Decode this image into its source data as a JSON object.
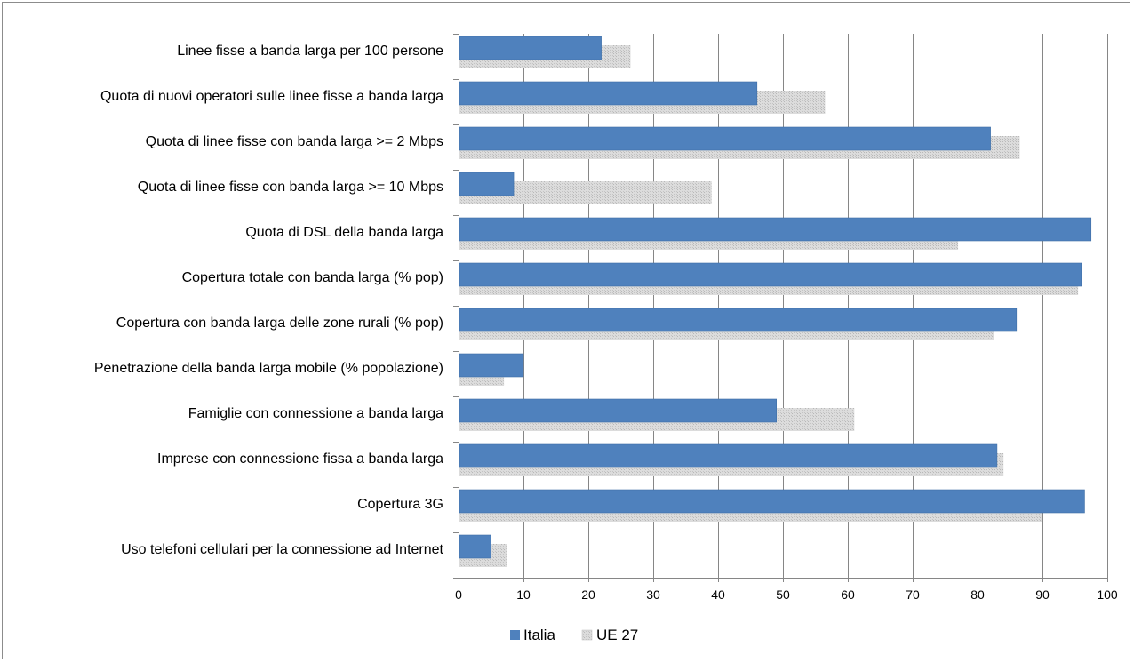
{
  "chart_data": {
    "type": "bar",
    "orientation": "horizontal",
    "title": "",
    "xlabel": "",
    "ylabel": "",
    "xlim": [
      0,
      100
    ],
    "x_ticks": [
      0,
      10,
      20,
      30,
      40,
      50,
      60,
      70,
      80,
      90,
      100
    ],
    "grid": "vertical-major",
    "legend_position": "bottom",
    "categories": [
      "Linee fisse a banda larga per 100 persone",
      "Quota di nuovi operatori sulle linee fisse a banda larga",
      "Quota di linee fisse con banda larga >= 2 Mbps",
      "Quota di linee fisse con banda larga >= 10 Mbps",
      "Quota di DSL della banda larga",
      "Copertura totale con banda larga (% pop)",
      "Copertura con banda larga delle zone rurali (% pop)",
      "Penetrazione della banda larga mobile (% popolazione)",
      "Famiglie con connessione a banda larga",
      "Imprese con connessione fissa a banda larga",
      "Copertura 3G",
      "Uso telefoni cellulari per la connessione ad Internet"
    ],
    "series": [
      {
        "name": "Italia",
        "color": "#4f81bd",
        "values": [
          22,
          46,
          82,
          8.5,
          97.5,
          96,
          86,
          10,
          49,
          83,
          96.5,
          5
        ]
      },
      {
        "name": "UE 27",
        "color": "#d3d3d3",
        "values": [
          26.5,
          56.5,
          86.5,
          39,
          77,
          95.5,
          82.5,
          7,
          61,
          84,
          90,
          7.5
        ]
      }
    ]
  }
}
